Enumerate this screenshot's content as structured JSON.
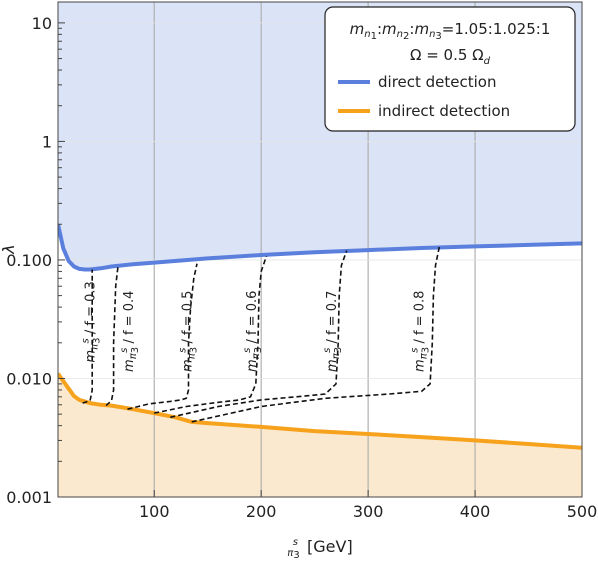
{
  "chart_data": {
    "type": "line",
    "title": "",
    "xlabel": {
      "symbol": "m",
      "sub": "π",
      "subsub": "3",
      "sup": "s",
      "unit": "[GeV]"
    },
    "ylabel": "λ",
    "xlim": [
      10,
      500
    ],
    "ylim": [
      0.001,
      15
    ],
    "yscale": "log",
    "x_ticks": [
      100,
      200,
      300,
      400,
      500
    ],
    "x_tick_labels": [
      "100",
      "200",
      "300",
      "400",
      "500"
    ],
    "y_ticks": [
      0.001,
      0.01,
      0.1,
      1,
      10
    ],
    "y_tick_labels": [
      "0.001",
      "0.010",
      "0.100",
      "1",
      "10"
    ],
    "vertical_gridlines": [
      100,
      200,
      300,
      400
    ],
    "legend": {
      "placement": "top-right",
      "ratio_parts": [
        {
          "m": "m",
          "sub": "n",
          "subsub": "1"
        },
        {
          "m": "m",
          "sub": "n",
          "subsub": "2"
        },
        {
          "m": "m",
          "sub": "n",
          "subsub": "3"
        }
      ],
      "ratio_separator": ":",
      "ratio_values": "=1.05:1.025:1",
      "omega_lhs": "Ω",
      "omega_rhs": "= 0.5 Ω",
      "omega_sub": "d",
      "entries": [
        {
          "label": "direct detection",
          "color": "#5b7fdc"
        },
        {
          "label": "indirect detection",
          "color": "#f6a21c"
        }
      ]
    },
    "regions": [
      {
        "name": "direct-excluded",
        "color": "#dbe3f7",
        "bound": "direct detection",
        "side": "above"
      },
      {
        "name": "indirect-excluded",
        "color": "#fbe9cf",
        "bound": "indirect detection",
        "side": "below"
      }
    ],
    "series": [
      {
        "name": "direct detection",
        "color": "#5b7fdc",
        "style": "solid",
        "x": [
          10,
          15,
          20,
          25,
          30,
          35,
          40,
          50,
          60,
          80,
          100,
          150,
          200,
          250,
          300,
          350,
          400,
          450,
          500
        ],
        "y": [
          0.2,
          0.125,
          0.098,
          0.088,
          0.084,
          0.083,
          0.083,
          0.085,
          0.088,
          0.092,
          0.095,
          0.103,
          0.11,
          0.116,
          0.121,
          0.126,
          0.13,
          0.134,
          0.138
        ]
      },
      {
        "name": "indirect detection",
        "color": "#f6a21c",
        "style": "solid",
        "x": [
          10,
          15,
          20,
          25,
          30,
          40,
          50,
          60,
          70,
          80,
          100,
          120,
          135,
          150,
          200,
          250,
          300,
          350,
          400,
          450,
          500
        ],
        "y": [
          0.011,
          0.0095,
          0.0082,
          0.0071,
          0.0066,
          0.0062,
          0.006,
          0.0059,
          0.0057,
          0.0055,
          0.0051,
          0.0047,
          0.0043,
          0.0042,
          0.0039,
          0.0036,
          0.0034,
          0.0032,
          0.003,
          0.0028,
          0.0026
        ]
      }
    ],
    "contours": [
      {
        "label_prefix": {
          "m": "m",
          "sub": "π",
          "subsub": "3",
          "sup": "s"
        },
        "label": "/ f = 0.3",
        "label_x": 44,
        "label_y": 0.03,
        "x": [
          33,
          40,
          42,
          42,
          42,
          42
        ],
        "y": [
          0.0062,
          0.0065,
          0.008,
          0.02,
          0.05,
          0.083
        ]
      },
      {
        "label_prefix": {
          "m": "m",
          "sub": "π",
          "subsub": "3",
          "sup": "s"
        },
        "label": "/ f = 0.4",
        "label_x": 80,
        "label_y": 0.025,
        "x": [
          55,
          60,
          62,
          62,
          64,
          66
        ],
        "y": [
          0.0059,
          0.0065,
          0.008,
          0.02,
          0.06,
          0.087
        ]
      },
      {
        "label_prefix": {
          "m": "m",
          "sub": "π",
          "subsub": "3",
          "sup": "s"
        },
        "label": "/ f = 0.5",
        "label_x": 135,
        "label_y": 0.025,
        "x": [
          75,
          95,
          115,
          125,
          130,
          132,
          132,
          134,
          137,
          140
        ],
        "y": [
          0.0055,
          0.0061,
          0.0064,
          0.0066,
          0.0068,
          0.008,
          0.02,
          0.04,
          0.07,
          0.093
        ]
      },
      {
        "label_prefix": {
          "m": "m",
          "sub": "π",
          "subsub": "3",
          "sup": "s"
        },
        "label": "/ f = 0.6",
        "label_x": 195,
        "label_y": 0.025,
        "x": [
          100,
          130,
          160,
          180,
          190,
          195,
          197,
          198,
          200,
          205
        ],
        "y": [
          0.0051,
          0.0058,
          0.0063,
          0.0066,
          0.007,
          0.009,
          0.02,
          0.05,
          0.08,
          0.108
        ]
      },
      {
        "label_prefix": {
          "m": "m",
          "sub": "π",
          "subsub": "3",
          "sup": "s"
        },
        "label": "/ f = 0.7",
        "label_x": 270,
        "label_y": 0.025,
        "x": [
          115,
          160,
          200,
          240,
          260,
          270,
          272,
          273,
          275,
          280
        ],
        "y": [
          0.0047,
          0.0058,
          0.0066,
          0.0071,
          0.0074,
          0.009,
          0.02,
          0.05,
          0.09,
          0.12
        ]
      },
      {
        "label_prefix": {
          "m": "m",
          "sub": "π",
          "subsub": "3",
          "sup": "s"
        },
        "label": "/ f = 0.8",
        "label_x": 352,
        "label_y": 0.025,
        "x": [
          135,
          200,
          260,
          320,
          350,
          358,
          360,
          361,
          363,
          367
        ],
        "y": [
          0.0043,
          0.0058,
          0.0068,
          0.0074,
          0.0078,
          0.009,
          0.02,
          0.05,
          0.09,
          0.135
        ]
      }
    ]
  }
}
